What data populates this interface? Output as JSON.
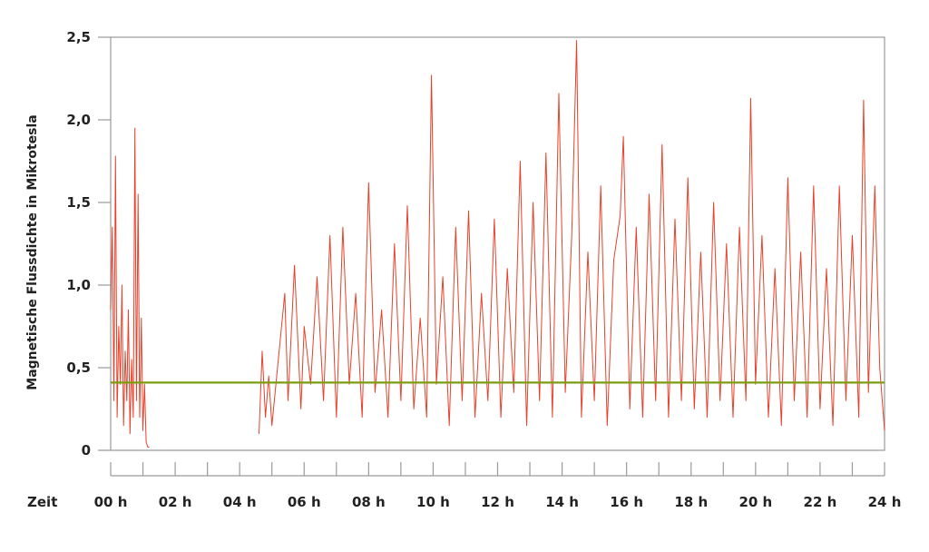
{
  "chart_data": {
    "type": "line",
    "ylabel": "Magnetische Flussdichte in Mikrotesla",
    "xlabel": "Zeit",
    "ylim": [
      0,
      2.5
    ],
    "xlim": [
      0,
      24
    ],
    "y_ticks": [
      {
        "value": 0,
        "label": "0"
      },
      {
        "value": 0.5,
        "label": "0,5"
      },
      {
        "value": 1.0,
        "label": "1,0"
      },
      {
        "value": 1.5,
        "label": "1,5"
      },
      {
        "value": 2.0,
        "label": "2,0"
      },
      {
        "value": 2.5,
        "label": "2,5"
      }
    ],
    "x_ticks": [
      {
        "value": 0,
        "label": "00 h"
      },
      {
        "value": 2,
        "label": "02 h"
      },
      {
        "value": 4,
        "label": "04 h"
      },
      {
        "value": 6,
        "label": "06 h"
      },
      {
        "value": 8,
        "label": "08 h"
      },
      {
        "value": 10,
        "label": "10 h"
      },
      {
        "value": 12,
        "label": "12 h"
      },
      {
        "value": 14,
        "label": "14 h"
      },
      {
        "value": 16,
        "label": "16 h"
      },
      {
        "value": 18,
        "label": "18 h"
      },
      {
        "value": 20,
        "label": "20 h"
      },
      {
        "value": 22,
        "label": "22 h"
      },
      {
        "value": 24,
        "label": "24 h"
      }
    ],
    "x_minor_ticks_hours": 1,
    "series": [
      {
        "color": "#e8402a",
        "segments": [
          {
            "x": [
              0.0,
              0.05,
              0.1,
              0.15,
              0.2,
              0.25,
              0.3,
              0.35,
              0.4,
              0.45,
              0.5,
              0.55,
              0.6,
              0.65,
              0.7,
              0.75,
              0.8,
              0.85,
              0.9,
              0.95,
              1.0,
              1.05,
              1.1,
              1.15,
              1.2
            ],
            "y": [
              0.85,
              1.35,
              0.3,
              1.78,
              0.2,
              0.75,
              0.4,
              1.0,
              0.15,
              0.6,
              0.3,
              0.85,
              0.1,
              0.55,
              0.2,
              1.95,
              0.3,
              1.55,
              0.2,
              0.8,
              0.12,
              0.4,
              0.05,
              0.02,
              0.02
            ]
          },
          {
            "x": [
              4.6,
              4.7,
              4.8,
              4.9,
              5.0,
              5.2,
              5.4,
              5.5,
              5.7,
              5.9,
              6.0,
              6.2,
              6.4,
              6.6,
              6.8,
              7.0,
              7.2,
              7.4,
              7.6,
              7.8,
              8.0,
              8.2,
              8.4,
              8.6,
              8.8,
              9.0,
              9.2,
              9.4,
              9.6,
              9.8,
              9.95,
              10.1,
              10.3,
              10.5,
              10.7,
              10.9,
              11.1,
              11.3,
              11.5,
              11.7,
              11.9,
              12.1,
              12.3,
              12.5,
              12.7,
              12.9,
              13.1,
              13.3,
              13.5,
              13.7,
              13.9,
              14.1,
              14.3,
              14.45,
              14.6,
              14.8,
              15.0,
              15.2,
              15.4,
              15.6,
              15.8,
              15.9,
              16.1,
              16.3,
              16.5,
              16.7,
              16.9,
              17.1,
              17.3,
              17.5,
              17.7,
              17.9,
              18.1,
              18.3,
              18.5,
              18.7,
              18.9,
              19.1,
              19.3,
              19.5,
              19.7,
              19.85,
              20.0,
              20.2,
              20.4,
              20.6,
              20.8,
              21.0,
              21.2,
              21.4,
              21.6,
              21.8,
              22.0,
              22.2,
              22.4,
              22.6,
              22.8,
              23.0,
              23.2,
              23.35,
              23.5,
              23.7,
              23.85,
              24.0
            ],
            "y": [
              0.1,
              0.6,
              0.2,
              0.45,
              0.15,
              0.55,
              0.95,
              0.3,
              1.12,
              0.25,
              0.75,
              0.4,
              1.05,
              0.3,
              1.3,
              0.2,
              1.35,
              0.4,
              0.95,
              0.2,
              1.62,
              0.35,
              0.85,
              0.2,
              1.25,
              0.3,
              1.48,
              0.25,
              0.8,
              0.2,
              2.27,
              0.4,
              1.05,
              0.15,
              1.35,
              0.3,
              1.45,
              0.2,
              0.95,
              0.3,
              1.4,
              0.2,
              1.1,
              0.35,
              1.75,
              0.15,
              1.5,
              0.3,
              1.8,
              0.2,
              2.16,
              0.35,
              1.3,
              2.48,
              0.2,
              1.2,
              0.3,
              1.6,
              0.15,
              1.15,
              1.42,
              1.9,
              0.25,
              1.35,
              0.2,
              1.55,
              0.3,
              1.85,
              0.2,
              1.4,
              0.3,
              1.65,
              0.25,
              1.2,
              0.2,
              1.5,
              0.3,
              1.25,
              0.2,
              1.35,
              0.3,
              2.13,
              0.4,
              1.3,
              0.2,
              1.1,
              0.15,
              1.65,
              0.3,
              1.2,
              0.2,
              1.6,
              0.25,
              1.1,
              0.15,
              1.6,
              0.3,
              1.3,
              0.2,
              2.12,
              0.35,
              1.6,
              0.5,
              0.12
            ]
          }
        ]
      },
      {
        "color": "#7a9e12",
        "x": [
          0,
          24
        ],
        "y": [
          0.41,
          0.41
        ]
      }
    ]
  }
}
